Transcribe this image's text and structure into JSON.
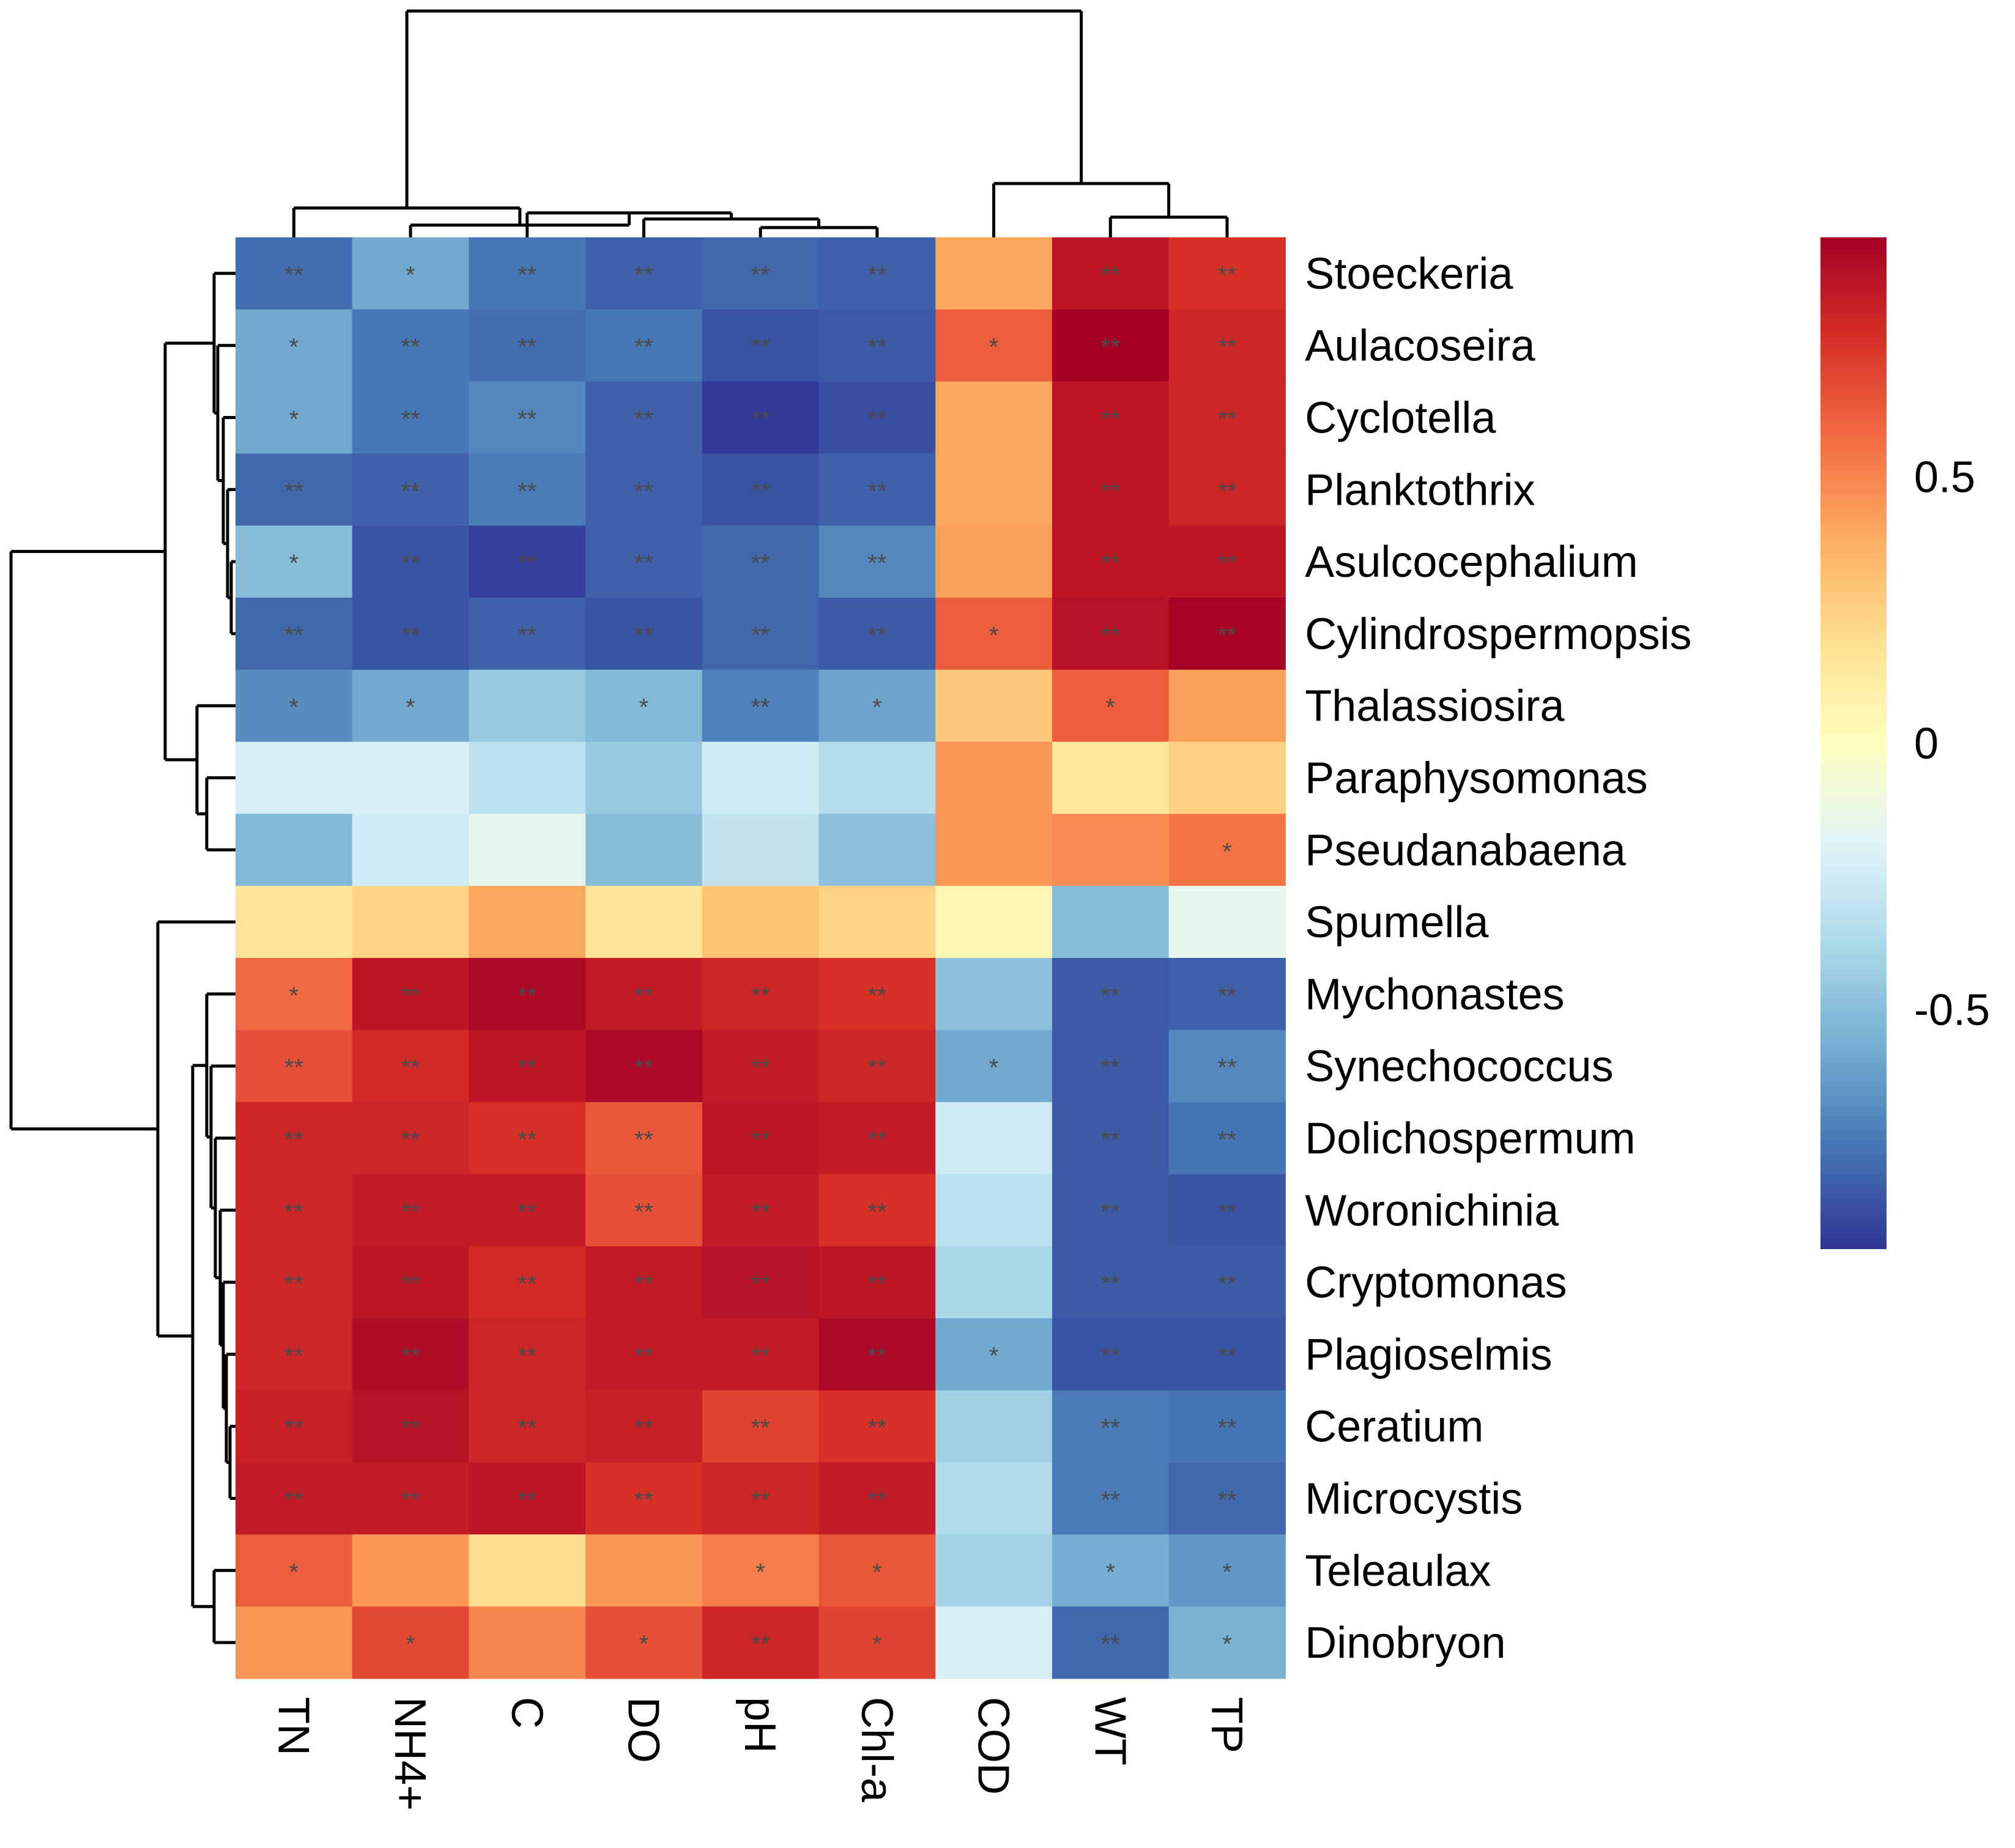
{
  "chart_data": {
    "type": "heatmap",
    "title": "",
    "xlabel": "",
    "ylabel": "",
    "columns": [
      "TN",
      "NH4+",
      "C",
      "DO",
      "pH",
      "Chl-a",
      "COD",
      "WT",
      "TP"
    ],
    "rows": [
      "Stoeckeria",
      "Aulacoseira",
      "Cyclotella",
      "Planktothrix",
      "Asulcocephalium",
      "Cylindrospermopsis",
      "Thalassiosira",
      "Paraphysomonas",
      "Pseudanabaena",
      "Spumella",
      "Mychonastes",
      "Synechococcus",
      "Dolichospermum",
      "Woronichinia",
      "Cryptomonas",
      "Plagioselmis",
      "Ceratium",
      "Microcystis",
      "Teleaulax",
      "Dinobryon"
    ],
    "values": [
      [
        -0.78,
        -0.58,
        -0.75,
        -0.82,
        -0.8,
        -0.82,
        0.4,
        0.86,
        0.76
      ],
      [
        -0.58,
        -0.75,
        -0.78,
        -0.75,
        -0.86,
        -0.84,
        0.62,
        0.95,
        0.8
      ],
      [
        -0.58,
        -0.75,
        -0.7,
        -0.82,
        -0.94,
        -0.88,
        0.4,
        0.86,
        0.8
      ],
      [
        -0.8,
        -0.82,
        -0.74,
        -0.82,
        -0.86,
        -0.82,
        0.4,
        0.86,
        0.8
      ],
      [
        -0.5,
        -0.86,
        -0.92,
        -0.82,
        -0.8,
        -0.7,
        0.42,
        0.86,
        0.86
      ],
      [
        -0.8,
        -0.86,
        -0.82,
        -0.86,
        -0.8,
        -0.84,
        0.62,
        0.88,
        0.94
      ],
      [
        -0.68,
        -0.58,
        -0.45,
        -0.52,
        -0.72,
        -0.6,
        0.28,
        0.62,
        0.42
      ],
      [
        -0.22,
        -0.22,
        -0.32,
        -0.45,
        -0.25,
        -0.35,
        0.45,
        0.15,
        0.25
      ],
      [
        -0.52,
        -0.25,
        -0.15,
        -0.5,
        -0.3,
        -0.48,
        0.45,
        0.48,
        0.55
      ],
      [
        0.16,
        0.24,
        0.4,
        0.16,
        0.3,
        0.24,
        0.05,
        -0.5,
        -0.15
      ],
      [
        0.58,
        0.86,
        0.92,
        0.84,
        0.8,
        0.76,
        -0.48,
        -0.84,
        -0.82
      ],
      [
        0.66,
        0.78,
        0.86,
        0.92,
        0.84,
        0.8,
        -0.58,
        -0.84,
        -0.7
      ],
      [
        0.8,
        0.8,
        0.76,
        0.64,
        0.86,
        0.84,
        -0.25,
        -0.84,
        -0.76
      ],
      [
        0.8,
        0.84,
        0.84,
        0.66,
        0.84,
        0.76,
        -0.32,
        -0.84,
        -0.86
      ],
      [
        0.8,
        0.86,
        0.78,
        0.84,
        0.88,
        0.86,
        -0.38,
        -0.84,
        -0.84
      ],
      [
        0.8,
        0.9,
        0.8,
        0.84,
        0.84,
        0.92,
        -0.58,
        -0.86,
        -0.86
      ],
      [
        0.82,
        0.88,
        0.8,
        0.82,
        0.7,
        0.76,
        -0.42,
        -0.74,
        -0.76
      ],
      [
        0.84,
        0.84,
        0.86,
        0.76,
        0.8,
        0.84,
        -0.36,
        -0.74,
        -0.8
      ],
      [
        0.62,
        0.45,
        0.2,
        0.45,
        0.52,
        0.64,
        -0.4,
        -0.56,
        -0.64
      ],
      [
        0.45,
        0.68,
        0.5,
        0.66,
        0.8,
        0.7,
        -0.22,
        -0.8,
        -0.55
      ]
    ],
    "significance": [
      [
        "**",
        "*",
        "**",
        "**",
        "**",
        "**",
        "",
        "**",
        "**"
      ],
      [
        "*",
        "**",
        "**",
        "**",
        "**",
        "**",
        "*",
        "**",
        "**"
      ],
      [
        "*",
        "**",
        "**",
        "**",
        "**",
        "**",
        "",
        "**",
        "**"
      ],
      [
        "**",
        "**",
        "**",
        "**",
        "**",
        "**",
        "",
        "**",
        "**"
      ],
      [
        "*",
        "**",
        "**",
        "**",
        "**",
        "**",
        "",
        "**",
        "**"
      ],
      [
        "**",
        "**",
        "**",
        "**",
        "**",
        "**",
        "*",
        "**",
        "**"
      ],
      [
        "*",
        "*",
        "",
        "*",
        "**",
        "*",
        "",
        "*",
        ""
      ],
      [
        "",
        "",
        "",
        "",
        "",
        "",
        "",
        "",
        ""
      ],
      [
        "",
        "",
        "",
        "",
        "",
        "",
        "",
        "",
        "*"
      ],
      [
        "",
        "",
        "",
        "",
        "",
        "",
        "",
        "",
        ""
      ],
      [
        "*",
        "**",
        "**",
        "**",
        "**",
        "**",
        "",
        "**",
        "**"
      ],
      [
        "**",
        "**",
        "**",
        "**",
        "**",
        "**",
        "*",
        "**",
        "**"
      ],
      [
        "**",
        "**",
        "**",
        "**",
        "**",
        "**",
        "",
        "**",
        "**"
      ],
      [
        "**",
        "**",
        "**",
        "**",
        "**",
        "**",
        "",
        "**",
        "**"
      ],
      [
        "**",
        "**",
        "**",
        "**",
        "**",
        "**",
        "",
        "**",
        "**"
      ],
      [
        "**",
        "**",
        "**",
        "**",
        "**",
        "**",
        "*",
        "**",
        "**"
      ],
      [
        "**",
        "**",
        "**",
        "**",
        "**",
        "**",
        "",
        "**",
        "**"
      ],
      [
        "**",
        "**",
        "**",
        "**",
        "**",
        "**",
        "",
        "**",
        "**"
      ],
      [
        "*",
        "",
        "",
        "",
        "*",
        "*",
        "",
        "*",
        "*"
      ],
      [
        "",
        "*",
        "",
        "*",
        "**",
        "*",
        "",
        "**",
        "*"
      ]
    ],
    "colorbar": {
      "range": [
        -0.95,
        0.95
      ],
      "ticks": [
        0.5,
        0,
        -0.5
      ],
      "tick_labels": [
        "0.5",
        "0",
        "-0.5"
      ],
      "colors": [
        "#313695",
        "#4575b4",
        "#74add1",
        "#abd9e9",
        "#e0f3f8",
        "#ffffbf",
        "#fee090",
        "#fdae61",
        "#f46d43",
        "#d73027",
        "#a50026"
      ]
    },
    "row_dendrogram": {
      "groups": [
        [
          0,
          1,
          2,
          3,
          4,
          5
        ],
        [
          6,
          7,
          8
        ],
        [
          9
        ],
        [
          10,
          11,
          12,
          13,
          14,
          15,
          16,
          17
        ],
        [
          18,
          19
        ]
      ]
    },
    "column_dendrogram": {
      "groups": [
        [
          0,
          1,
          2,
          3,
          4,
          5
        ],
        [
          6,
          7,
          8
        ]
      ]
    }
  }
}
